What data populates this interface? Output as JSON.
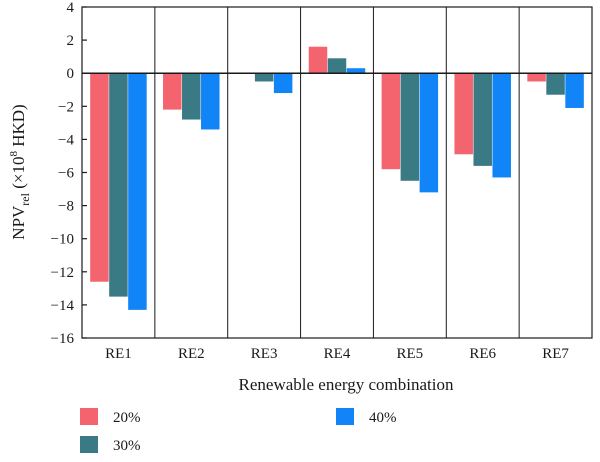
{
  "chart_data": {
    "type": "bar",
    "categories": [
      "RE1",
      "RE2",
      "RE3",
      "RE4",
      "RE5",
      "RE6",
      "RE7"
    ],
    "series": [
      {
        "name": "20%",
        "color": "#f4646e",
        "values": [
          -12.6,
          -2.2,
          0,
          1.6,
          -5.8,
          -4.9,
          -0.5
        ]
      },
      {
        "name": "30%",
        "color": "#3a7a85",
        "values": [
          -13.5,
          -2.8,
          -0.5,
          0.9,
          -6.5,
          -5.6,
          -1.3
        ]
      },
      {
        "name": "40%",
        "color": "#1184f7",
        "values": [
          -14.3,
          -3.4,
          -1.2,
          0.3,
          -7.2,
          -6.3,
          -2.1
        ]
      }
    ],
    "xlabel": "Renewable energy combination",
    "ylabel": {
      "base": "NPV",
      "sub": "rel",
      "unit_prefix": " (×10",
      "sup": "8",
      "unit_suffix": " HKD)"
    },
    "ylim": [
      -16,
      4
    ],
    "yticks": [
      4,
      2,
      0,
      -2,
      -4,
      -6,
      -8,
      -10,
      -12,
      -14,
      -16
    ],
    "ytick_labels": [
      "4",
      "2",
      "0",
      "−2",
      "−4",
      "−6",
      "−8",
      "−10",
      "−12",
      "−14",
      "−16"
    ],
    "grid": false,
    "legend": "bottom"
  }
}
